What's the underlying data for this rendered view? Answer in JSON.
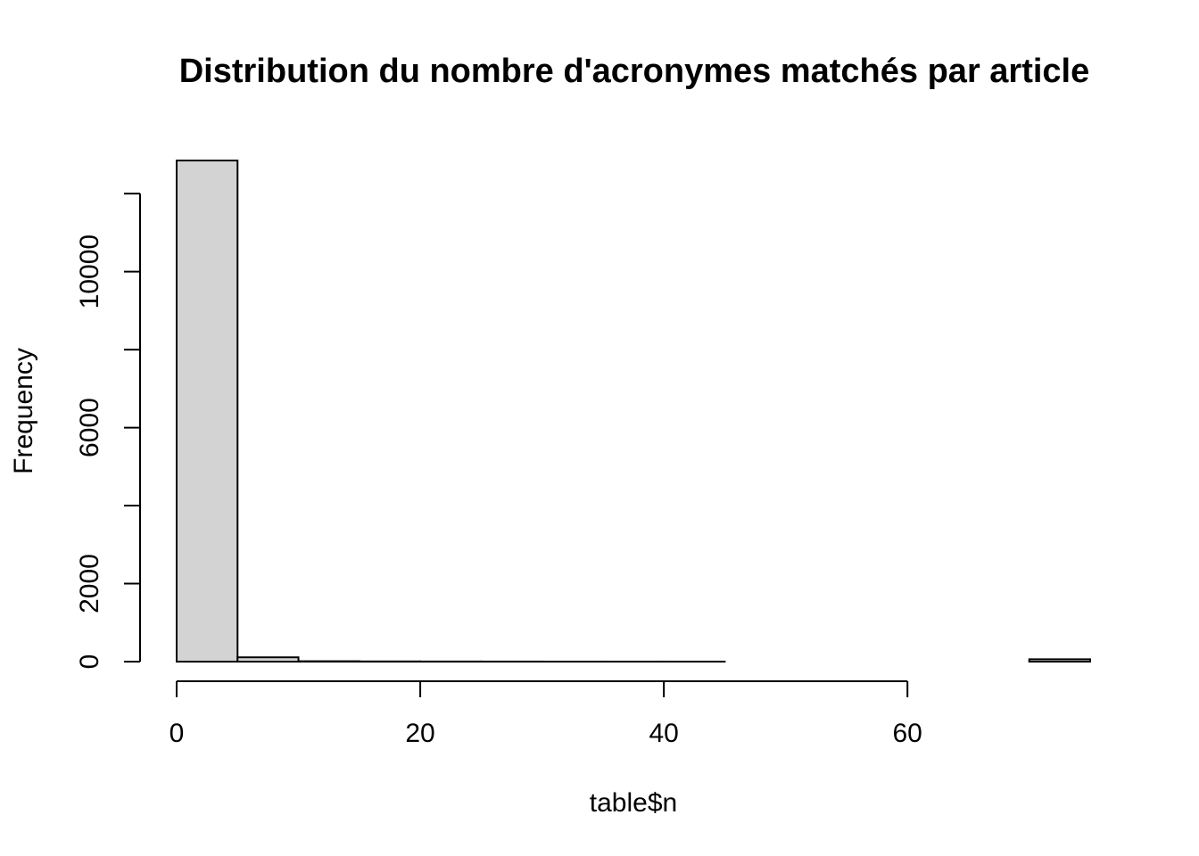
{
  "chart_data": {
    "type": "bar",
    "title": "Distribution du nombre d'acronymes matchés par article",
    "xlabel": "table$n",
    "ylabel": "Frequency",
    "bin_edges": [
      0,
      5,
      10,
      15,
      20,
      25,
      30,
      35,
      40,
      45,
      50,
      55,
      60,
      65,
      70,
      75
    ],
    "values": [
      12850,
      110,
      10,
      5,
      3,
      2,
      1,
      1,
      1,
      0,
      0,
      0,
      0,
      0,
      60
    ],
    "x_ticks": [
      0,
      20,
      40,
      60
    ],
    "x_tick_labels": [
      "0",
      "20",
      "40",
      "60"
    ],
    "y_ticks": [
      0,
      2000,
      4000,
      6000,
      8000,
      10000,
      12000
    ],
    "y_tick_labels": [
      "0",
      "2000",
      "",
      "6000",
      "",
      "10000",
      ""
    ],
    "xlim": [
      0,
      75
    ],
    "ylim": [
      0,
      12850
    ],
    "grid": false,
    "bar_color": "#d3d3d3",
    "edge_color": "#000000"
  }
}
